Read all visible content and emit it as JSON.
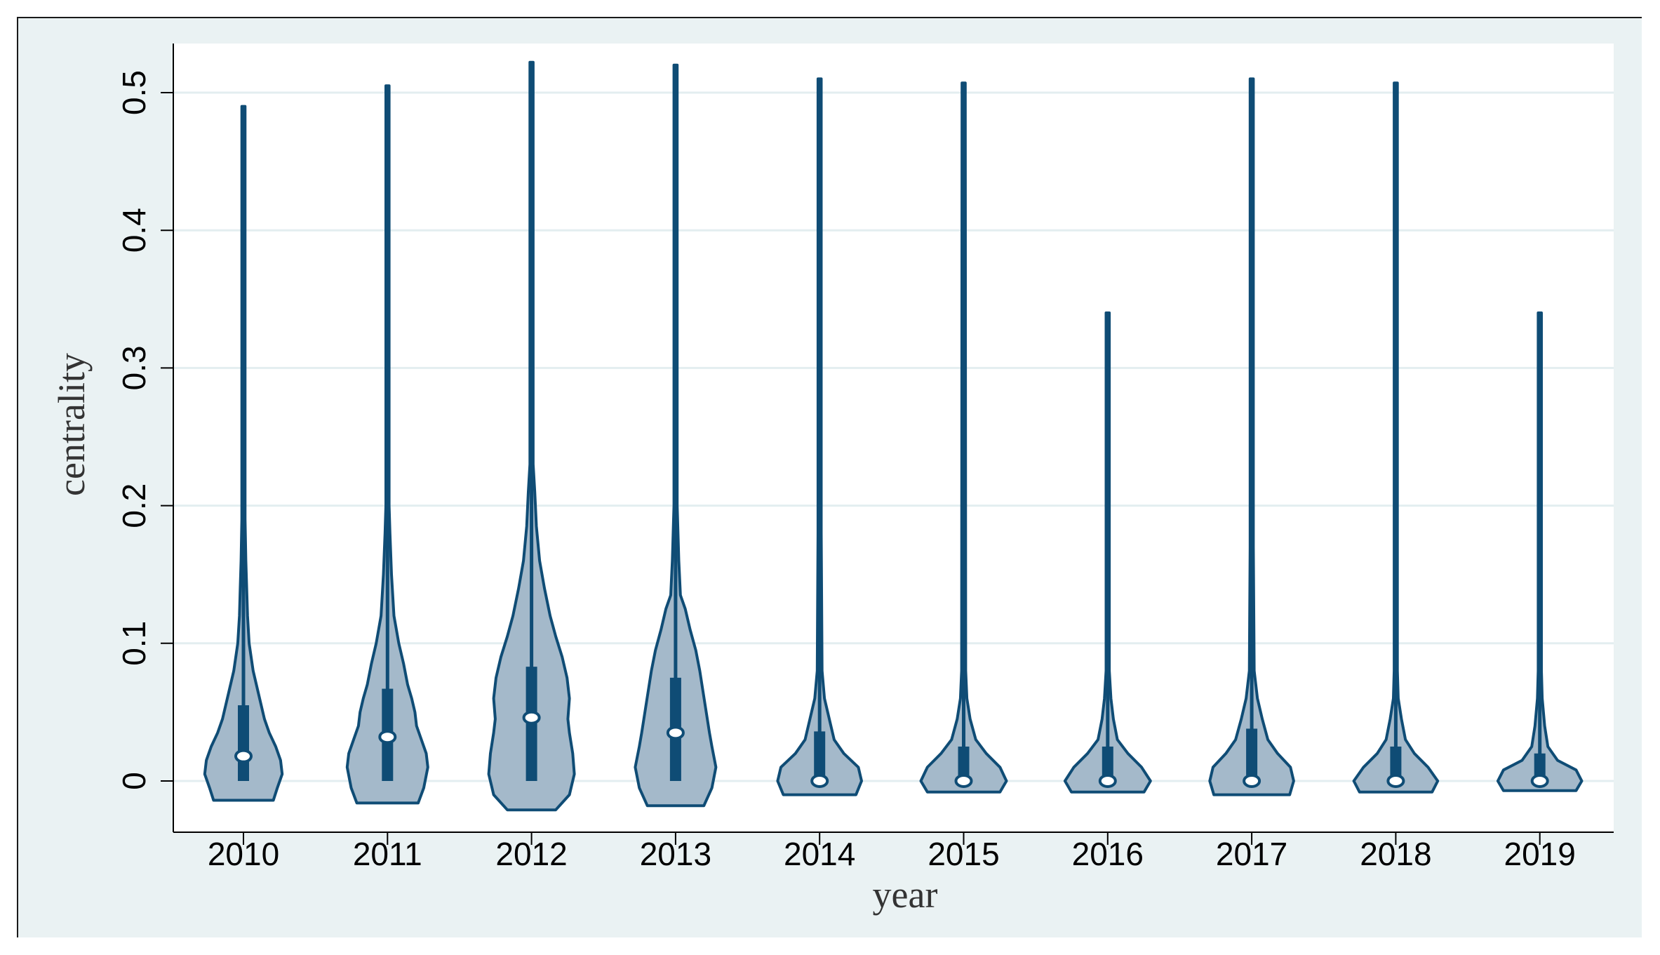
{
  "chart_data": {
    "type": "violin",
    "xlabel": "year",
    "ylabel": "centrality",
    "categories": [
      "2010",
      "2011",
      "2012",
      "2013",
      "2014",
      "2015",
      "2016",
      "2017",
      "2018",
      "2019"
    ],
    "yticks": [
      0,
      0.1,
      0.2,
      0.3,
      0.4,
      0.5
    ],
    "ytick_labels": [
      "0",
      "0.1",
      "0.2",
      "0.3",
      "0.4",
      "0.5"
    ],
    "ylim": [
      -0.035,
      0.535
    ],
    "grid": true,
    "series": [
      {
        "category": "2010",
        "max": 0.49,
        "median": 0.018,
        "q1": 0.0,
        "q3": 0.055,
        "extent_min": -0.014,
        "profile": [
          [
            -0.014,
            0.37
          ],
          [
            -0.005,
            0.42
          ],
          [
            0.005,
            0.48
          ],
          [
            0.015,
            0.46
          ],
          [
            0.025,
            0.4
          ],
          [
            0.035,
            0.32
          ],
          [
            0.045,
            0.26
          ],
          [
            0.055,
            0.22
          ],
          [
            0.065,
            0.18
          ],
          [
            0.08,
            0.12
          ],
          [
            0.1,
            0.07
          ],
          [
            0.12,
            0.05
          ],
          [
            0.14,
            0.04
          ],
          [
            0.16,
            0.03
          ],
          [
            0.19,
            0.02
          ],
          [
            0.49,
            0.02
          ]
        ]
      },
      {
        "category": "2011",
        "max": 0.505,
        "median": 0.032,
        "q1": 0.0,
        "q3": 0.067,
        "extent_min": -0.016,
        "profile": [
          [
            -0.016,
            0.38
          ],
          [
            -0.005,
            0.45
          ],
          [
            0.01,
            0.5
          ],
          [
            0.02,
            0.48
          ],
          [
            0.03,
            0.42
          ],
          [
            0.04,
            0.36
          ],
          [
            0.05,
            0.34
          ],
          [
            0.06,
            0.3
          ],
          [
            0.07,
            0.25
          ],
          [
            0.085,
            0.2
          ],
          [
            0.1,
            0.14
          ],
          [
            0.12,
            0.08
          ],
          [
            0.15,
            0.05
          ],
          [
            0.18,
            0.03
          ],
          [
            0.2,
            0.02
          ],
          [
            0.505,
            0.02
          ]
        ]
      },
      {
        "category": "2012",
        "max": 0.522,
        "median": 0.046,
        "q1": 0.0,
        "q3": 0.083,
        "extent_min": -0.021,
        "profile": [
          [
            -0.021,
            0.3
          ],
          [
            -0.01,
            0.47
          ],
          [
            0.005,
            0.53
          ],
          [
            0.02,
            0.51
          ],
          [
            0.035,
            0.47
          ],
          [
            0.045,
            0.45
          ],
          [
            0.06,
            0.47
          ],
          [
            0.075,
            0.44
          ],
          [
            0.09,
            0.38
          ],
          [
            0.105,
            0.3
          ],
          [
            0.12,
            0.23
          ],
          [
            0.14,
            0.16
          ],
          [
            0.16,
            0.1
          ],
          [
            0.185,
            0.06
          ],
          [
            0.21,
            0.04
          ],
          [
            0.23,
            0.02
          ],
          [
            0.522,
            0.02
          ]
        ]
      },
      {
        "category": "2013",
        "max": 0.52,
        "median": 0.035,
        "q1": 0.0,
        "q3": 0.075,
        "extent_min": -0.018,
        "profile": [
          [
            -0.018,
            0.35
          ],
          [
            -0.005,
            0.45
          ],
          [
            0.01,
            0.5
          ],
          [
            0.025,
            0.45
          ],
          [
            0.035,
            0.42
          ],
          [
            0.05,
            0.38
          ],
          [
            0.065,
            0.34
          ],
          [
            0.08,
            0.3
          ],
          [
            0.095,
            0.25
          ],
          [
            0.11,
            0.18
          ],
          [
            0.125,
            0.12
          ],
          [
            0.135,
            0.06
          ],
          [
            0.16,
            0.04
          ],
          [
            0.2,
            0.02
          ],
          [
            0.52,
            0.02
          ]
        ]
      },
      {
        "category": "2014",
        "max": 0.51,
        "median": 0.0,
        "q1": -0.003,
        "q3": 0.036,
        "extent_min": -0.01,
        "profile": [
          [
            -0.01,
            0.45
          ],
          [
            0.0,
            0.52
          ],
          [
            0.01,
            0.48
          ],
          [
            0.02,
            0.3
          ],
          [
            0.03,
            0.18
          ],
          [
            0.045,
            0.12
          ],
          [
            0.06,
            0.06
          ],
          [
            0.08,
            0.03
          ],
          [
            0.18,
            0.02
          ],
          [
            0.51,
            0.02
          ]
        ]
      },
      {
        "category": "2015",
        "max": 0.507,
        "median": 0.0,
        "q1": -0.003,
        "q3": 0.025,
        "extent_min": -0.008,
        "profile": [
          [
            -0.008,
            0.45
          ],
          [
            0.0,
            0.53
          ],
          [
            0.01,
            0.45
          ],
          [
            0.02,
            0.28
          ],
          [
            0.03,
            0.15
          ],
          [
            0.045,
            0.08
          ],
          [
            0.06,
            0.04
          ],
          [
            0.08,
            0.025
          ],
          [
            0.507,
            0.02
          ]
        ]
      },
      {
        "category": "2016",
        "max": 0.34,
        "median": 0.0,
        "q1": -0.003,
        "q3": 0.025,
        "extent_min": -0.008,
        "profile": [
          [
            -0.008,
            0.45
          ],
          [
            0.0,
            0.53
          ],
          [
            0.01,
            0.42
          ],
          [
            0.02,
            0.25
          ],
          [
            0.03,
            0.12
          ],
          [
            0.045,
            0.07
          ],
          [
            0.06,
            0.04
          ],
          [
            0.08,
            0.02
          ],
          [
            0.34,
            0.02
          ]
        ]
      },
      {
        "category": "2017",
        "max": 0.51,
        "median": 0.0,
        "q1": -0.003,
        "q3": 0.038,
        "extent_min": -0.01,
        "profile": [
          [
            -0.01,
            0.47
          ],
          [
            0.0,
            0.52
          ],
          [
            0.01,
            0.48
          ],
          [
            0.02,
            0.32
          ],
          [
            0.03,
            0.2
          ],
          [
            0.045,
            0.13
          ],
          [
            0.06,
            0.07
          ],
          [
            0.08,
            0.03
          ],
          [
            0.17,
            0.02
          ],
          [
            0.51,
            0.02
          ]
        ]
      },
      {
        "category": "2018",
        "max": 0.507,
        "median": 0.0,
        "q1": -0.003,
        "q3": 0.025,
        "extent_min": -0.008,
        "profile": [
          [
            -0.008,
            0.45
          ],
          [
            0.0,
            0.52
          ],
          [
            0.01,
            0.4
          ],
          [
            0.02,
            0.23
          ],
          [
            0.03,
            0.12
          ],
          [
            0.045,
            0.07
          ],
          [
            0.06,
            0.03
          ],
          [
            0.08,
            0.02
          ],
          [
            0.507,
            0.02
          ]
        ]
      },
      {
        "category": "2019",
        "max": 0.34,
        "median": 0.0,
        "q1": -0.003,
        "q3": 0.02,
        "extent_min": -0.007,
        "profile": [
          [
            -0.007,
            0.45
          ],
          [
            0.0,
            0.52
          ],
          [
            0.008,
            0.45
          ],
          [
            0.015,
            0.22
          ],
          [
            0.025,
            0.1
          ],
          [
            0.04,
            0.06
          ],
          [
            0.06,
            0.03
          ],
          [
            0.08,
            0.02
          ],
          [
            0.34,
            0.02
          ]
        ]
      }
    ],
    "colors": {
      "fill": "#a4b9ca",
      "stroke": "#0f4c75",
      "grid": "#e3eef0",
      "plot_bg": "#ffffff",
      "outer_bg": "#eaf2f3"
    }
  }
}
